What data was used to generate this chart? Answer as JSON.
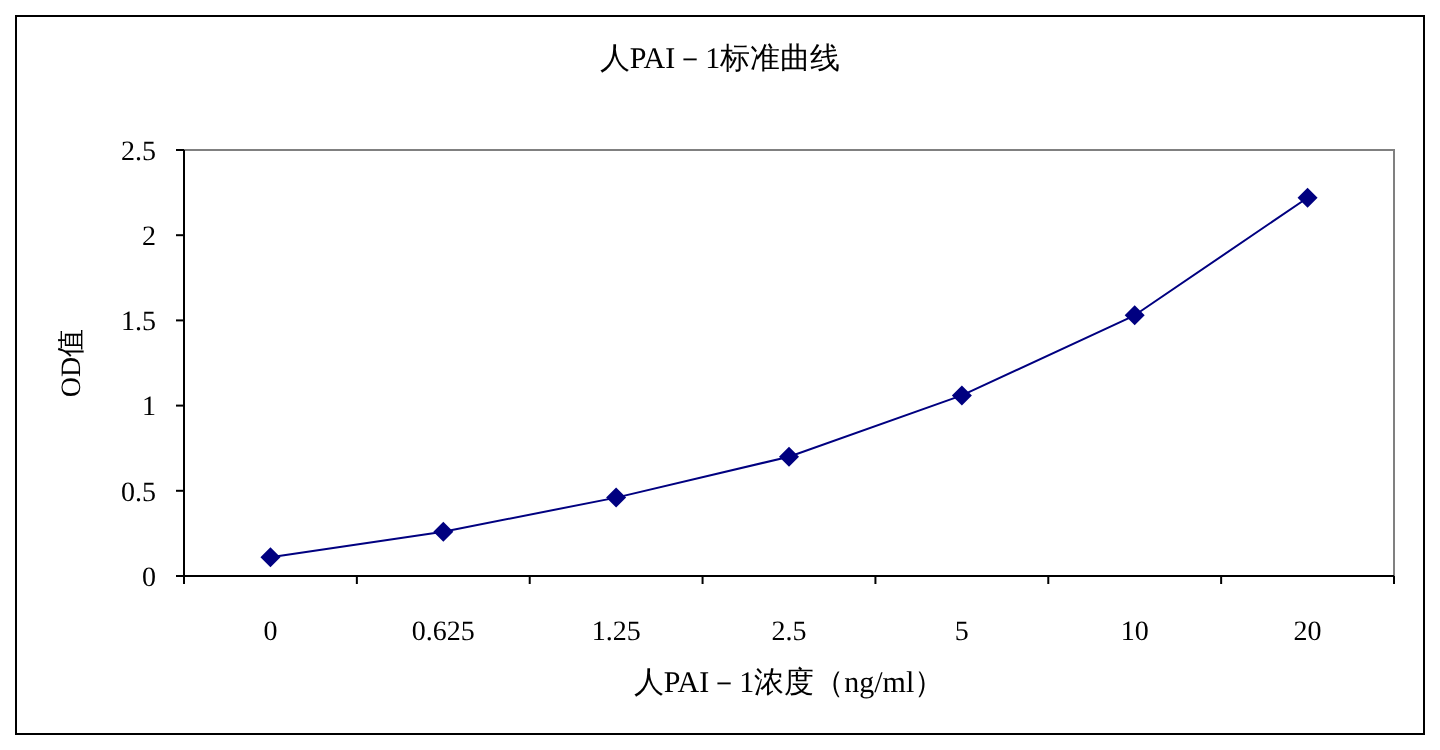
{
  "chart_data": {
    "type": "line",
    "title": "人PAI－1标准曲线",
    "xlabel": "人PAI－1浓度（ng/ml）",
    "ylabel": "OD值",
    "categories": [
      "0",
      "0.625",
      "1.25",
      "2.5",
      "5",
      "10",
      "20"
    ],
    "series": [
      {
        "color": "#000080",
        "values": [
          0.11,
          0.26,
          0.46,
          0.7,
          1.06,
          1.53,
          2.22
        ]
      }
    ],
    "ylim": [
      0,
      2.5
    ],
    "yticks": [
      0,
      0.5,
      1,
      1.5,
      2,
      2.5
    ],
    "grid": false,
    "marker": "diamond",
    "line_style": "solid"
  }
}
